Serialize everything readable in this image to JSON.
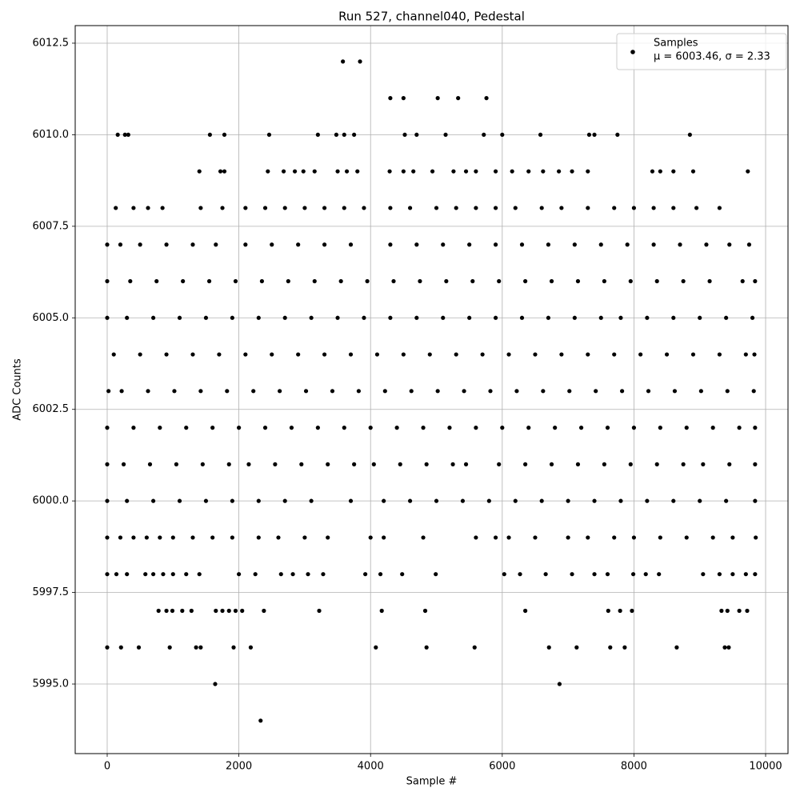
{
  "chart_data": {
    "type": "scatter",
    "title": "Run 527, channel040, Pedestal",
    "x_label": "Sample #",
    "y_label": "ADC Counts",
    "xlim": [
      -486,
      10340
    ],
    "ylim": [
      5993.1,
      6012.98
    ],
    "xticks": [
      0,
      2000,
      4000,
      6000,
      8000,
      10000
    ],
    "yticks": [
      {
        "value": 5995,
        "label": "5995.0"
      },
      {
        "value": 5997.5,
        "label": "5997.5"
      },
      {
        "value": 6000,
        "label": "6000.0"
      },
      {
        "value": 6002.5,
        "label": "6002.5"
      },
      {
        "value": 6005,
        "label": "6005.0"
      },
      {
        "value": 6007.5,
        "label": "6007.5"
      },
      {
        "value": 6010,
        "label": "6010.0"
      },
      {
        "value": 6012.5,
        "label": "6012.5"
      }
    ],
    "grid": true,
    "legend_position": "upper right",
    "legend_note": "μ = 6003.46, σ = 2.33",
    "series": [
      {
        "name": "Samples",
        "color": "#000000",
        "x": [
          3580,
          3840,
          4300,
          4500,
          5020,
          5330,
          5760,
          160,
          270,
          320,
          1560,
          1780,
          2460,
          3200,
          3480,
          3600,
          3750,
          4520,
          4700,
          5140,
          5720,
          6000,
          6580,
          7320,
          7400,
          7750,
          8850,
          1400,
          1720,
          1780,
          2440,
          2680,
          2850,
          2980,
          3150,
          3500,
          3640,
          3800,
          4290,
          4500,
          4650,
          4940,
          5260,
          5450,
          5600,
          5900,
          6150,
          6400,
          6620,
          6860,
          7060,
          7300,
          8280,
          8400,
          8600,
          8900,
          9730,
          130,
          400,
          620,
          840,
          1420,
          1750,
          2100,
          2400,
          2700,
          3000,
          3300,
          3600,
          3900,
          4300,
          4600,
          5000,
          5300,
          5600,
          5900,
          6200,
          6600,
          6900,
          7300,
          7700,
          8000,
          8300,
          8600,
          8950,
          9300,
          0,
          200,
          500,
          900,
          1300,
          1650,
          2100,
          2500,
          2900,
          3300,
          3700,
          4300,
          4700,
          5100,
          5500,
          5900,
          6300,
          6700,
          7100,
          7500,
          7900,
          8300,
          8700,
          9100,
          9450,
          9750,
          0,
          350,
          750,
          1150,
          1550,
          1950,
          2350,
          2750,
          3150,
          3550,
          3950,
          4350,
          4750,
          5150,
          5550,
          5950,
          6350,
          6750,
          7150,
          7550,
          7950,
          8350,
          8750,
          9150,
          9650,
          9840,
          0,
          300,
          700,
          1100,
          1500,
          1900,
          2300,
          2700,
          3100,
          3500,
          3900,
          4300,
          4700,
          5100,
          5500,
          5900,
          6300,
          6700,
          7100,
          7500,
          7800,
          8200,
          8600,
          9000,
          9400,
          9800,
          100,
          500,
          900,
          1300,
          1700,
          2100,
          2500,
          2900,
          3300,
          3700,
          4100,
          4500,
          4900,
          5300,
          5700,
          6100,
          6500,
          6900,
          7300,
          7700,
          8100,
          8500,
          8900,
          9300,
          9700,
          9830,
          20,
          220,
          620,
          1020,
          1420,
          1820,
          2220,
          2620,
          3020,
          3420,
          3820,
          4220,
          4620,
          5020,
          5420,
          5820,
          6220,
          6620,
          7020,
          7420,
          7820,
          8220,
          8620,
          9020,
          9420,
          9820,
          0,
          400,
          800,
          1200,
          1600,
          2000,
          2400,
          2800,
          3200,
          3600,
          4000,
          4400,
          4800,
          5200,
          5600,
          6000,
          6400,
          6800,
          7200,
          7600,
          8000,
          8400,
          8800,
          9200,
          9600,
          9840,
          0,
          250,
          650,
          1050,
          1450,
          1850,
          2150,
          2550,
          2950,
          3350,
          3750,
          4050,
          4450,
          4850,
          5250,
          5450,
          5950,
          6350,
          6750,
          7150,
          7550,
          7950,
          8350,
          8750,
          9050,
          9450,
          9840,
          0,
          300,
          700,
          1100,
          1500,
          1900,
          2300,
          2700,
          3100,
          3700,
          4200,
          4600,
          5000,
          5400,
          5800,
          6200,
          6600,
          7000,
          7400,
          7800,
          8200,
          8600,
          9000,
          9400,
          9840,
          0,
          200,
          400,
          600,
          800,
          1000,
          1300,
          1600,
          1900,
          2300,
          2600,
          3000,
          3350,
          4000,
          4200,
          4800,
          5600,
          5900,
          6100,
          6500,
          7000,
          7300,
          7700,
          8000,
          8400,
          8800,
          9200,
          9500,
          9850,
          0,
          140,
          300,
          580,
          700,
          850,
          1000,
          1200,
          1400,
          2000,
          2250,
          2640,
          2820,
          3050,
          3280,
          3920,
          4150,
          4480,
          4990,
          6030,
          6270,
          6660,
          7060,
          7400,
          7600,
          7990,
          8180,
          8380,
          9050,
          9300,
          9500,
          9700,
          9840,
          780,
          900,
          990,
          1140,
          1280,
          1650,
          1750,
          1850,
          1950,
          2050,
          2380,
          3220,
          4170,
          4830,
          6350,
          7610,
          7790,
          7970,
          9330,
          9420,
          9600,
          9720,
          0,
          210,
          480,
          950,
          1350,
          1420,
          1920,
          2180,
          4080,
          4850,
          5580,
          6710,
          7130,
          7640,
          7860,
          8650,
          9380,
          9440,
          1640,
          6870,
          2330
        ],
        "values": [
          6012,
          6012,
          6011,
          6011,
          6011,
          6011,
          6011,
          6010,
          6010,
          6010,
          6010,
          6010,
          6010,
          6010,
          6010,
          6010,
          6010,
          6010,
          6010,
          6010,
          6010,
          6010,
          6010,
          6010,
          6010,
          6010,
          6010,
          6009,
          6009,
          6009,
          6009,
          6009,
          6009,
          6009,
          6009,
          6009,
          6009,
          6009,
          6009,
          6009,
          6009,
          6009,
          6009,
          6009,
          6009,
          6009,
          6009,
          6009,
          6009,
          6009,
          6009,
          6009,
          6009,
          6009,
          6009,
          6009,
          6009,
          6008,
          6008,
          6008,
          6008,
          6008,
          6008,
          6008,
          6008,
          6008,
          6008,
          6008,
          6008,
          6008,
          6008,
          6008,
          6008,
          6008,
          6008,
          6008,
          6008,
          6008,
          6008,
          6008,
          6008,
          6008,
          6008,
          6008,
          6008,
          6008,
          6007,
          6007,
          6007,
          6007,
          6007,
          6007,
          6007,
          6007,
          6007,
          6007,
          6007,
          6007,
          6007,
          6007,
          6007,
          6007,
          6007,
          6007,
          6007,
          6007,
          6007,
          6007,
          6007,
          6007,
          6007,
          6007,
          6006,
          6006,
          6006,
          6006,
          6006,
          6006,
          6006,
          6006,
          6006,
          6006,
          6006,
          6006,
          6006,
          6006,
          6006,
          6006,
          6006,
          6006,
          6006,
          6006,
          6006,
          6006,
          6006,
          6006,
          6006,
          6006,
          6005,
          6005,
          6005,
          6005,
          6005,
          6005,
          6005,
          6005,
          6005,
          6005,
          6005,
          6005,
          6005,
          6005,
          6005,
          6005,
          6005,
          6005,
          6005,
          6005,
          6005,
          6005,
          6005,
          6005,
          6005,
          6005,
          6004,
          6004,
          6004,
          6004,
          6004,
          6004,
          6004,
          6004,
          6004,
          6004,
          6004,
          6004,
          6004,
          6004,
          6004,
          6004,
          6004,
          6004,
          6004,
          6004,
          6004,
          6004,
          6004,
          6004,
          6004,
          6004,
          6003,
          6003,
          6003,
          6003,
          6003,
          6003,
          6003,
          6003,
          6003,
          6003,
          6003,
          6003,
          6003,
          6003,
          6003,
          6003,
          6003,
          6003,
          6003,
          6003,
          6003,
          6003,
          6003,
          6003,
          6003,
          6003,
          6002,
          6002,
          6002,
          6002,
          6002,
          6002,
          6002,
          6002,
          6002,
          6002,
          6002,
          6002,
          6002,
          6002,
          6002,
          6002,
          6002,
          6002,
          6002,
          6002,
          6002,
          6002,
          6002,
          6002,
          6002,
          6002,
          6001,
          6001,
          6001,
          6001,
          6001,
          6001,
          6001,
          6001,
          6001,
          6001,
          6001,
          6001,
          6001,
          6001,
          6001,
          6001,
          6001,
          6001,
          6001,
          6001,
          6001,
          6001,
          6001,
          6001,
          6001,
          6001,
          6001,
          6000,
          6000,
          6000,
          6000,
          6000,
          6000,
          6000,
          6000,
          6000,
          6000,
          6000,
          6000,
          6000,
          6000,
          6000,
          6000,
          6000,
          6000,
          6000,
          6000,
          6000,
          6000,
          6000,
          6000,
          6000,
          5999,
          5999,
          5999,
          5999,
          5999,
          5999,
          5999,
          5999,
          5999,
          5999,
          5999,
          5999,
          5999,
          5999,
          5999,
          5999,
          5999,
          5999,
          5999,
          5999,
          5999,
          5999,
          5999,
          5999,
          5999,
          5999,
          5999,
          5999,
          5999,
          5998,
          5998,
          5998,
          5998,
          5998,
          5998,
          5998,
          5998,
          5998,
          5998,
          5998,
          5998,
          5998,
          5998,
          5998,
          5998,
          5998,
          5998,
          5998,
          5998,
          5998,
          5998,
          5998,
          5998,
          5998,
          5998,
          5998,
          5998,
          5998,
          5998,
          5998,
          5998,
          5998,
          5997,
          5997,
          5997,
          5997,
          5997,
          5997,
          5997,
          5997,
          5997,
          5997,
          5997,
          5997,
          5997,
          5997,
          5997,
          5997,
          5997,
          5997,
          5997,
          5997,
          5997,
          5997,
          5996,
          5996,
          5996,
          5996,
          5996,
          5996,
          5996,
          5996,
          5996,
          5996,
          5996,
          5996,
          5996,
          5996,
          5996,
          5996,
          5996,
          5996,
          5995,
          5995,
          5994
        ]
      }
    ]
  }
}
